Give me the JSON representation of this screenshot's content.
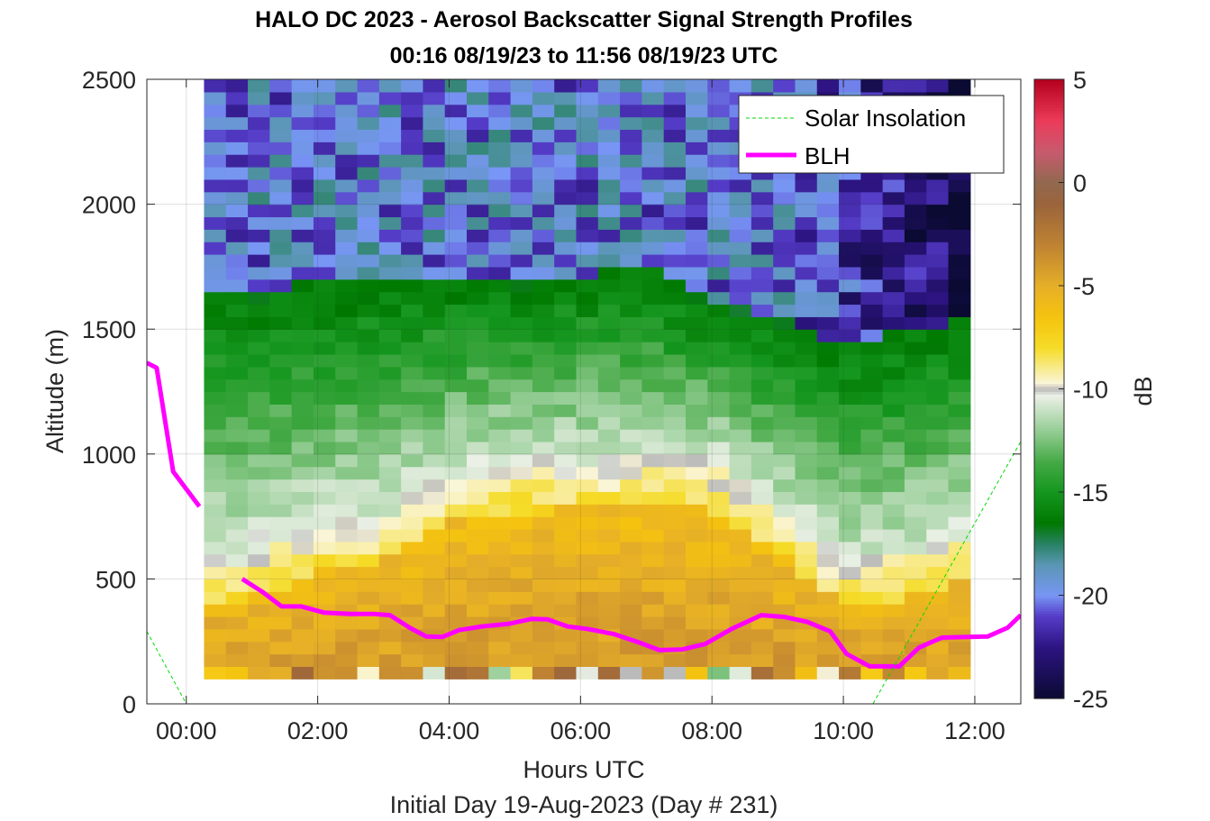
{
  "chart_data": {
    "type": "heatmap",
    "title": "HALO DC 2023 - Aerosol Backscatter Signal Strength Profiles",
    "subtitle": "00:16 08/19/23 to 11:56 08/19/23  UTC",
    "xlabel": "Hours UTC",
    "ylabel": "Altitude (m)",
    "footer": "Initial Day 19-Aug-2023 (Day # 231)",
    "colorbar_label": "dB",
    "xlim": [
      -0.6,
      12.7
    ],
    "ylim": [
      0,
      2500
    ],
    "x_ticks": [
      0,
      2,
      4,
      6,
      8,
      10,
      12
    ],
    "x_tick_labels": [
      "00:00",
      "02:00",
      "04:00",
      "06:00",
      "08:00",
      "10:00",
      "12:00"
    ],
    "y_ticks": [
      0,
      500,
      1000,
      1500,
      2000,
      2500
    ],
    "y_tick_labels": [
      "0",
      "500",
      "1000",
      "1500",
      "2000",
      "2500"
    ],
    "clim": [
      -25,
      5
    ],
    "colorbar_ticks": [
      -25,
      -20,
      -15,
      -10,
      -5,
      0,
      5
    ],
    "colorbar_tick_labels": [
      "-25",
      "-20",
      "-15",
      "-10",
      "-5",
      "0",
      "5"
    ],
    "grid": true,
    "legend": {
      "position": "top-right",
      "entries": [
        {
          "label": "Solar Insolation",
          "color": "#00dd00",
          "style": "dashed"
        },
        {
          "label": "BLH",
          "color": "#ff00ff",
          "style": "solid"
        }
      ]
    },
    "heatmap": {
      "x_start": 0.27,
      "x_end": 11.93,
      "time_bins": 35,
      "altitude_bin_m": 50,
      "altitude_start": 100,
      "altitude_end": 2500,
      "note_values": "dB signal strength by altitude bin, sampled profiles",
      "profile_keys_hours": [
        0.3,
        1.0,
        2.0,
        3.0,
        4.0,
        5.0,
        6.0,
        7.0,
        8.0,
        9.0,
        10.0,
        11.0,
        11.9
      ],
      "surface_layer_top_m": [
        560,
        600,
        700,
        760,
        900,
        950,
        960,
        980,
        950,
        780,
        560,
        600,
        680
      ],
      "residual_layer_top_m": [
        1650,
        1650,
        1700,
        1700,
        1720,
        1700,
        1720,
        1750,
        1600,
        1550,
        1450,
        1500,
        1550
      ],
      "lowest_layer_dB": -6,
      "aerosol_layer_dB": -12,
      "residual_dB": -14,
      "free_troposphere_dB": -20,
      "clear_air_dB": -24
    },
    "series": [
      {
        "name": "BLH",
        "color": "#ff00ff",
        "x": [
          -0.6,
          -0.45,
          -0.2,
          0.2,
          0.55,
          0.85,
          1.15,
          1.45,
          1.75,
          2.1,
          2.5,
          2.85,
          3.1,
          3.4,
          3.65,
          3.9,
          4.15,
          4.5,
          4.9,
          5.25,
          5.5,
          5.8,
          6.1,
          6.5,
          6.9,
          7.2,
          7.55,
          7.9,
          8.3,
          8.75,
          9.1,
          9.45,
          9.8,
          10.05,
          10.4,
          10.6,
          10.85,
          11.15,
          11.5,
          11.9,
          12.2,
          12.5,
          12.7
        ],
        "y": [
          1365,
          1345,
          930,
          790,
          null,
          500,
          450,
          390,
          390,
          365,
          360,
          360,
          355,
          305,
          270,
          268,
          295,
          310,
          320,
          340,
          338,
          310,
          300,
          280,
          245,
          215,
          218,
          240,
          300,
          355,
          348,
          328,
          290,
          200,
          150,
          150,
          150,
          225,
          265,
          268,
          270,
          305,
          355
        ]
      },
      {
        "name": "Solar Insolation",
        "color": "#00dd00",
        "x": [
          -0.6,
          0.0,
          10.45,
          12.7
        ],
        "y": [
          290,
          0,
          0,
          1050
        ]
      }
    ]
  }
}
